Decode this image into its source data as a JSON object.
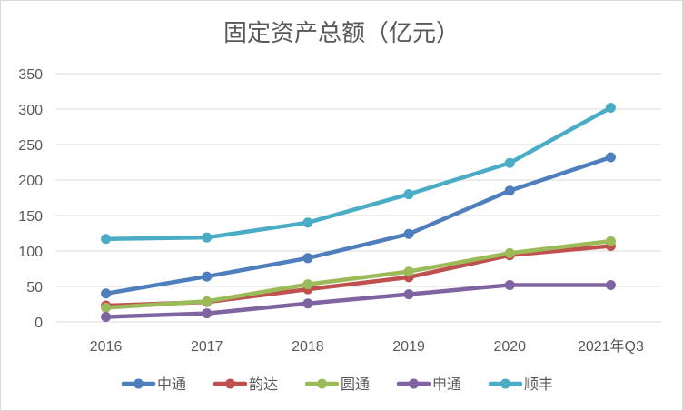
{
  "chart_data": {
    "type": "line",
    "title": "固定资产总额（亿元）",
    "xlabel": "",
    "ylabel": "",
    "ylim": [
      0,
      350
    ],
    "ytick_step": 50,
    "yticks": [
      "0",
      "50",
      "100",
      "150",
      "200",
      "250",
      "300",
      "350"
    ],
    "categories": [
      "2016",
      "2017",
      "2018",
      "2019",
      "2020",
      "2021年Q3"
    ],
    "legend_position": "bottom",
    "grid": true,
    "series": [
      {
        "name": "中通",
        "color": "#4f7ebd",
        "values": [
          40,
          64,
          90,
          124,
          185,
          232
        ]
      },
      {
        "name": "韵达",
        "color": "#c0504d",
        "values": [
          23,
          28,
          46,
          63,
          94,
          107
        ]
      },
      {
        "name": "圆通",
        "color": "#9bbb59",
        "values": [
          20,
          29,
          53,
          71,
          97,
          114
        ]
      },
      {
        "name": "申通",
        "color": "#8064a2",
        "values": [
          7,
          12,
          26,
          39,
          52,
          52
        ]
      },
      {
        "name": "顺丰",
        "color": "#4bacc6",
        "values": [
          117,
          119,
          140,
          180,
          224,
          302
        ]
      }
    ]
  }
}
